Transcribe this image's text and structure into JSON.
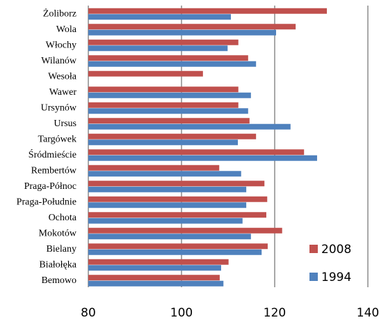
{
  "chart_data": {
    "type": "barh",
    "categories": [
      "Żoliborz",
      "Wola",
      "Włochy",
      "Wilanów",
      "Wesoła",
      "Wawer",
      "Ursynów",
      "Ursus",
      "Targówek",
      "Śródmieście",
      "Rembertów",
      "Praga-Północ",
      "Praga-Południe",
      "Ochota",
      "Mokotów",
      "Bielany",
      "Białołęka",
      "Bemowo"
    ],
    "series": [
      {
        "name": "2008",
        "color": "#c0504d",
        "values": [
          131.2,
          124.5,
          112.2,
          114.3,
          104.6,
          112.2,
          112.2,
          114.6,
          116.0,
          126.3,
          108.1,
          117.8,
          118.4,
          118.2,
          121.6,
          118.5,
          110.1,
          108.2
        ]
      },
      {
        "name": "1994",
        "color": "#4f81bd",
        "values": [
          110.6,
          120.3,
          109.9,
          116.0,
          null,
          114.9,
          114.3,
          123.4,
          112.1,
          129.1,
          112.8,
          113.9,
          113.9,
          113.1,
          114.9,
          117.2,
          108.5,
          109.0
        ]
      }
    ],
    "xlim": [
      80,
      140
    ],
    "xticks": [
      80,
      100,
      120,
      140
    ],
    "grid": true,
    "legend": "lower-right"
  }
}
